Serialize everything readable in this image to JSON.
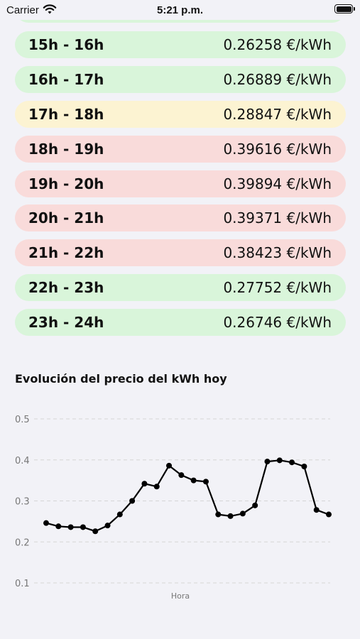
{
  "status_bar": {
    "carrier": "Carrier",
    "time": "5:21 p.m."
  },
  "prices": [
    {
      "hour": "15h - 16h",
      "price": "0.26258 €/kWh",
      "level": "green"
    },
    {
      "hour": "16h - 17h",
      "price": "0.26889 €/kWh",
      "level": "green"
    },
    {
      "hour": "17h - 18h",
      "price": "0.28847 €/kWh",
      "level": "yellow"
    },
    {
      "hour": "18h - 19h",
      "price": "0.39616 €/kWh",
      "level": "red"
    },
    {
      "hour": "19h - 20h",
      "price": "0.39894 €/kWh",
      "level": "red"
    },
    {
      "hour": "20h - 21h",
      "price": "0.39371 €/kWh",
      "level": "red"
    },
    {
      "hour": "21h - 22h",
      "price": "0.38423 €/kWh",
      "level": "red"
    },
    {
      "hour": "22h - 23h",
      "price": "0.27752 €/kWh",
      "level": "green"
    },
    {
      "hour": "23h - 24h",
      "price": "0.26746 €/kWh",
      "level": "green"
    }
  ],
  "chart_data": {
    "type": "line",
    "title": "Evolución del precio del kWh hoy",
    "xlabel": "Hora",
    "ylabel": "",
    "ylim": [
      0.1,
      0.5
    ],
    "yticks": [
      0.5,
      0.4,
      0.3,
      0.2,
      0.1
    ],
    "ytick_labels": [
      "0.5",
      "0.4",
      "0.3",
      "0.2",
      "0.1"
    ],
    "grid": true,
    "x": [
      0,
      1,
      2,
      3,
      4,
      5,
      6,
      7,
      8,
      9,
      10,
      11,
      12,
      13,
      14,
      15,
      16,
      17,
      18,
      19,
      20,
      21,
      22,
      23
    ],
    "values": [
      0.246,
      0.238,
      0.236,
      0.236,
      0.226,
      0.24,
      0.267,
      0.3,
      0.342,
      0.335,
      0.386,
      0.363,
      0.35,
      0.347,
      0.267,
      0.263,
      0.269,
      0.289,
      0.396,
      0.399,
      0.394,
      0.384,
      0.278,
      0.267
    ],
    "color": "#000000"
  },
  "colors": {
    "green": "#d9f5da",
    "yellow": "#fcf3d2",
    "red": "#f9dbda"
  }
}
